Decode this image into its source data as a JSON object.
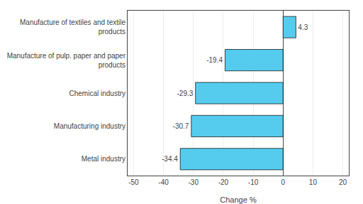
{
  "chart_data": {
    "type": "bar",
    "orientation": "horizontal",
    "categories": [
      "Metal industry",
      "Manufacturing industry",
      "Chemical industry",
      "Manufacture of pulp. paper and paper\nproducts",
      "Manufacture of textiles and textile\nproducts"
    ],
    "values": [
      -34.4,
      -30.7,
      -29.3,
      -19.4,
      4.3
    ],
    "color": "#55CCEE",
    "data_labels": true,
    "xlabel": "Change %",
    "xlim": [
      -52,
      22
    ],
    "xticks": [
      -50,
      -40,
      -30,
      -20,
      -10,
      0,
      10,
      20
    ],
    "grid": true
  }
}
